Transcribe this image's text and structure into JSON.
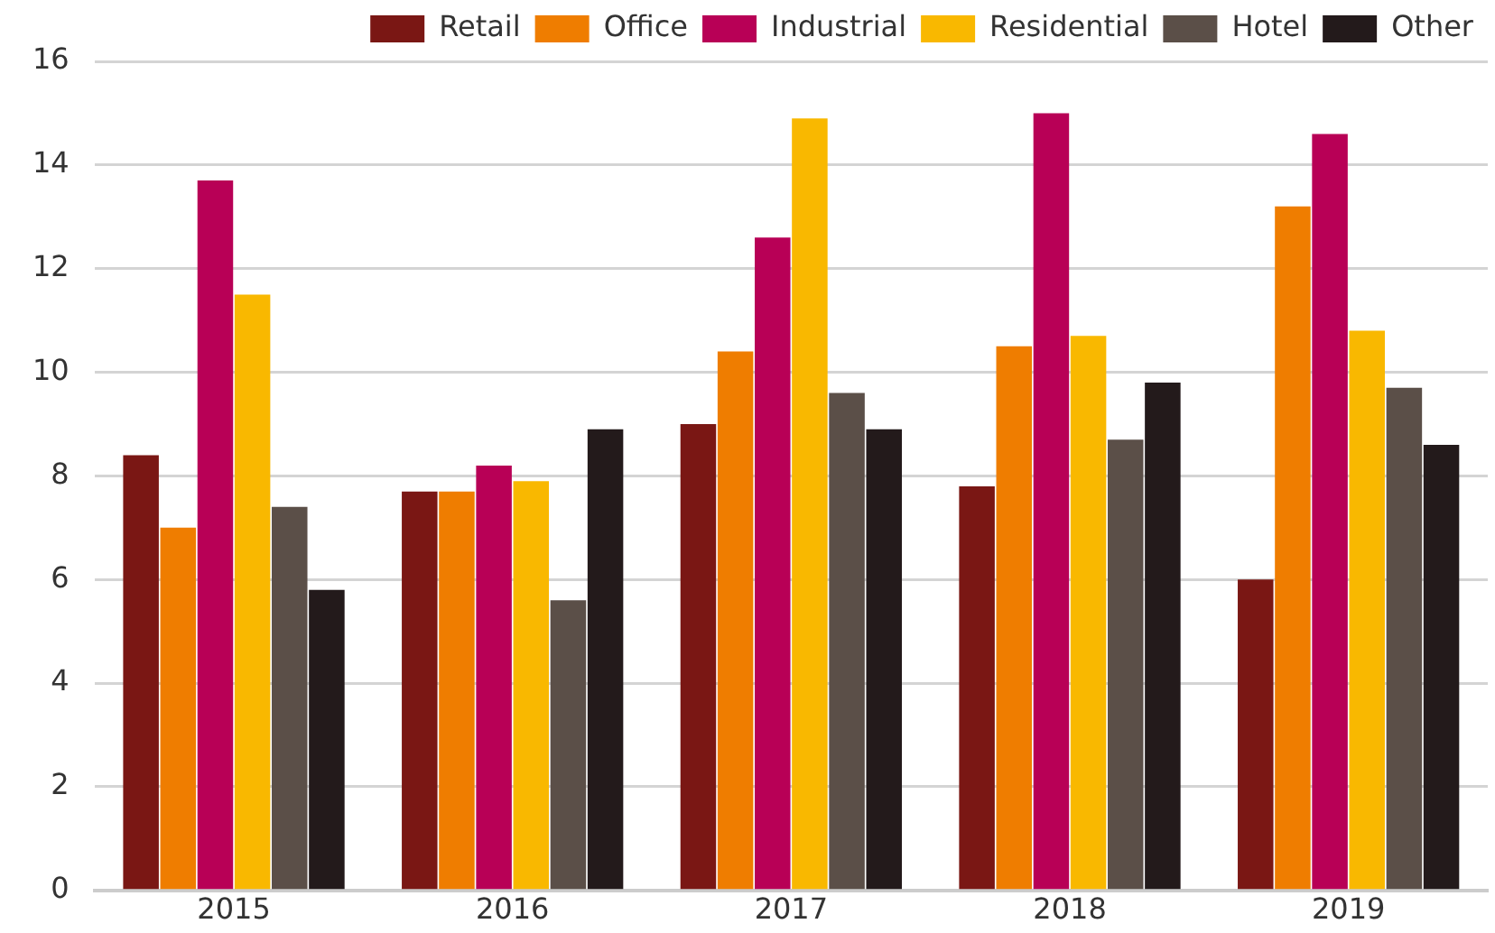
{
  "chart_data": {
    "type": "bar",
    "categories": [
      "2015",
      "2016",
      "2017",
      "2018",
      "2019"
    ],
    "series": [
      {
        "name": "Retail",
        "color": "#7a1714",
        "values": [
          8.4,
          7.7,
          9.0,
          7.8,
          6.0
        ]
      },
      {
        "name": "Office",
        "color": "#ef7d00",
        "values": [
          7.0,
          7.7,
          10.4,
          10.5,
          13.2
        ]
      },
      {
        "name": "Industrial",
        "color": "#b80056",
        "values": [
          13.7,
          8.2,
          12.6,
          15.0,
          14.6
        ]
      },
      {
        "name": "Residential",
        "color": "#f9b800",
        "values": [
          11.5,
          7.9,
          14.9,
          10.7,
          10.8
        ]
      },
      {
        "name": "Hotel",
        "color": "#5b4f48",
        "values": [
          7.4,
          5.6,
          9.6,
          8.7,
          9.7
        ]
      },
      {
        "name": "Other",
        "color": "#231a1b",
        "values": [
          5.8,
          8.9,
          8.9,
          9.8,
          8.6
        ]
      }
    ],
    "ylim": [
      0,
      16
    ],
    "yticks": [
      0,
      2,
      4,
      6,
      8,
      10,
      12,
      14,
      16
    ],
    "grid": "y",
    "legend": "top right"
  }
}
